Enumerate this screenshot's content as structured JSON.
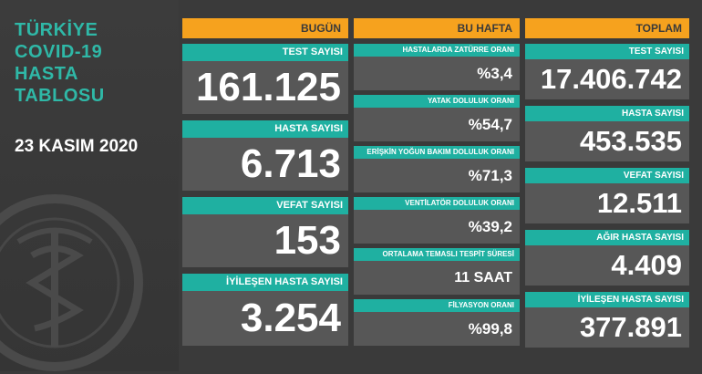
{
  "title": {
    "line1": "TÜRKİYE",
    "line2": "COVID-19",
    "line3": "HASTA",
    "line4": "TABLOSU"
  },
  "date": "23 KASIM 2020",
  "today": {
    "header": "BUGÜN",
    "items": [
      {
        "label": "TEST SAYISI",
        "value": "161.125"
      },
      {
        "label": "HASTA SAYISI",
        "value": "6.713"
      },
      {
        "label": "VEFAT SAYISI",
        "value": "153"
      },
      {
        "label": "İYİLEŞEN HASTA SAYISI",
        "value": "3.254"
      }
    ]
  },
  "week": {
    "header": "BU HAFTA",
    "items": [
      {
        "label": "HASTALARDA ZATÜRRE ORANI",
        "value": "%3,4"
      },
      {
        "label": "YATAK DOLULUK ORANI",
        "value": "%54,7"
      },
      {
        "label": "ERİŞKİN YOĞUN BAKIM DOLULUK ORANI",
        "value": "%71,3"
      },
      {
        "label": "VENTİLATÖR DOLULUK ORANI",
        "value": "%39,2"
      },
      {
        "label": "ORTALAMA TEMASLI TESPİT SÜRESİ",
        "value": "11 SAAT"
      },
      {
        "label": "FİLYASYON ORANI",
        "value": "%99,8"
      }
    ]
  },
  "total": {
    "header": "TOPLAM",
    "items": [
      {
        "label": "TEST SAYISI",
        "value": "17.406.742"
      },
      {
        "label": "HASTA SAYISI",
        "value": "453.535"
      },
      {
        "label": "VEFAT SAYISI",
        "value": "12.511"
      },
      {
        "label": "AĞIR HASTA SAYISI",
        "value": "4.409"
      },
      {
        "label": "İYİLEŞEN HASTA SAYISI",
        "value": "377.891"
      }
    ]
  },
  "colors": {
    "accent": "#f6a21e",
    "teal": "#1fb0a1",
    "panel": "#575757",
    "background": "#3a3a3a"
  }
}
